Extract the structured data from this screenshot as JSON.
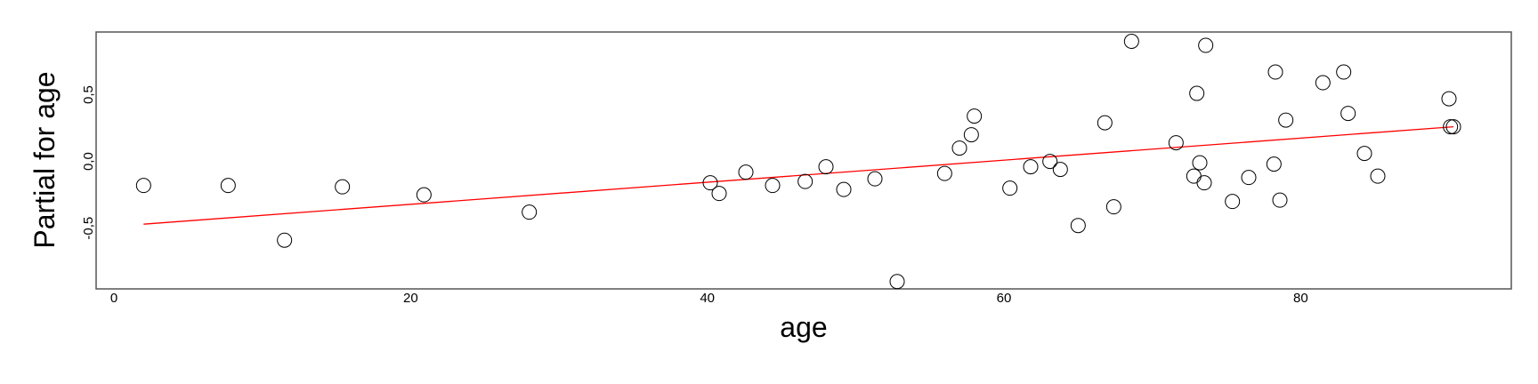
{
  "chart_data": {
    "type": "scatter",
    "title": "",
    "xlabel": "age",
    "ylabel": "Partial for age",
    "xlim": [
      -1.2,
      94.2
    ],
    "ylim": [
      -0.955,
      0.97
    ],
    "grid": false,
    "x_ticks": [
      0,
      20,
      40,
      60,
      80
    ],
    "x_tick_labels": [
      "0",
      "20",
      "40",
      "60",
      "80"
    ],
    "y_ticks": [
      -0.5,
      0.0,
      0.5
    ],
    "y_tick_labels": [
      "-0,5",
      "0,0",
      "0,5"
    ],
    "colors": {
      "points": "#000000",
      "fit_line": "#ff0000",
      "frame": "#555555"
    },
    "series": [
      {
        "type": "scatter",
        "marker": "open-circle",
        "points": [
          [
            2.0,
            -0.18
          ],
          [
            7.7,
            -0.18
          ],
          [
            11.5,
            -0.59
          ],
          [
            15.4,
            -0.19
          ],
          [
            20.9,
            -0.25
          ],
          [
            28.0,
            -0.38
          ],
          [
            40.2,
            -0.16
          ],
          [
            40.8,
            -0.24
          ],
          [
            42.6,
            -0.08
          ],
          [
            44.4,
            -0.18
          ],
          [
            46.6,
            -0.15
          ],
          [
            48.0,
            -0.04
          ],
          [
            49.2,
            -0.21
          ],
          [
            51.3,
            -0.13
          ],
          [
            52.8,
            -0.9
          ],
          [
            56.0,
            -0.09
          ],
          [
            57.0,
            0.1
          ],
          [
            57.8,
            0.2
          ],
          [
            58.0,
            0.34
          ],
          [
            60.4,
            -0.2
          ],
          [
            61.8,
            -0.04
          ],
          [
            63.1,
            0.0
          ],
          [
            63.8,
            -0.06
          ],
          [
            65.0,
            -0.48
          ],
          [
            66.8,
            0.29
          ],
          [
            67.4,
            -0.34
          ],
          [
            68.6,
            0.9
          ],
          [
            71.6,
            0.14
          ],
          [
            72.8,
            -0.11
          ],
          [
            73.0,
            0.51
          ],
          [
            73.2,
            -0.01
          ],
          [
            73.5,
            -0.16
          ],
          [
            73.6,
            0.87
          ],
          [
            75.4,
            -0.3
          ],
          [
            76.5,
            -0.12
          ],
          [
            78.2,
            -0.02
          ],
          [
            78.3,
            0.67
          ],
          [
            78.6,
            -0.29
          ],
          [
            79.0,
            0.31
          ],
          [
            81.5,
            0.59
          ],
          [
            82.9,
            0.67
          ],
          [
            83.2,
            0.36
          ],
          [
            84.3,
            0.06
          ],
          [
            85.2,
            -0.11
          ],
          [
            90.0,
            0.47
          ],
          [
            90.1,
            0.26
          ],
          [
            90.3,
            0.26
          ]
        ]
      },
      {
        "type": "line",
        "points": [
          [
            2.0,
            -0.47
          ],
          [
            90.3,
            0.26
          ]
        ]
      }
    ]
  }
}
